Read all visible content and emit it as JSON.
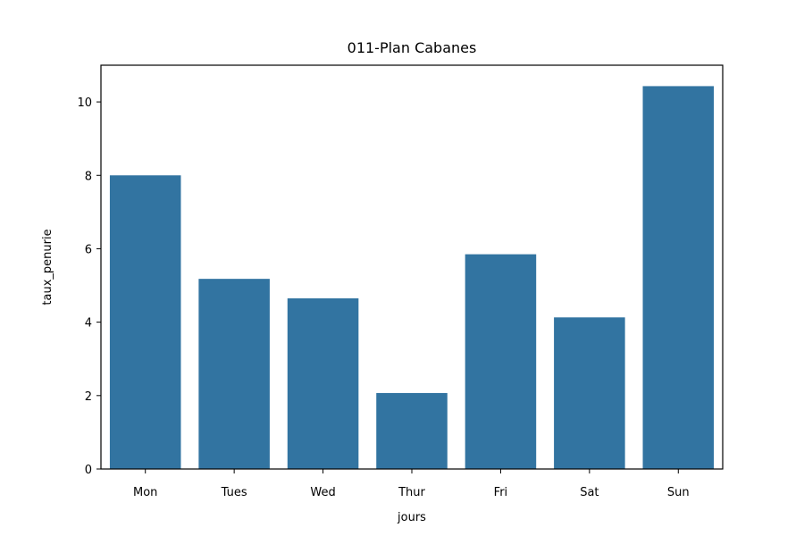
{
  "chart_data": {
    "type": "bar",
    "title": "011-Plan Cabanes",
    "xlabel": "jours",
    "ylabel": "taux_penurie",
    "categories": [
      "Mon",
      "Tues",
      "Wed",
      "Thur",
      "Fri",
      "Sat",
      "Sun"
    ],
    "values": [
      8.0,
      5.18,
      4.65,
      2.07,
      5.85,
      4.13,
      10.43
    ],
    "ylim": [
      0,
      11
    ],
    "yticks": [
      0,
      2,
      4,
      6,
      8,
      10
    ],
    "grid": false,
    "bar_color": "#3274a1"
  }
}
